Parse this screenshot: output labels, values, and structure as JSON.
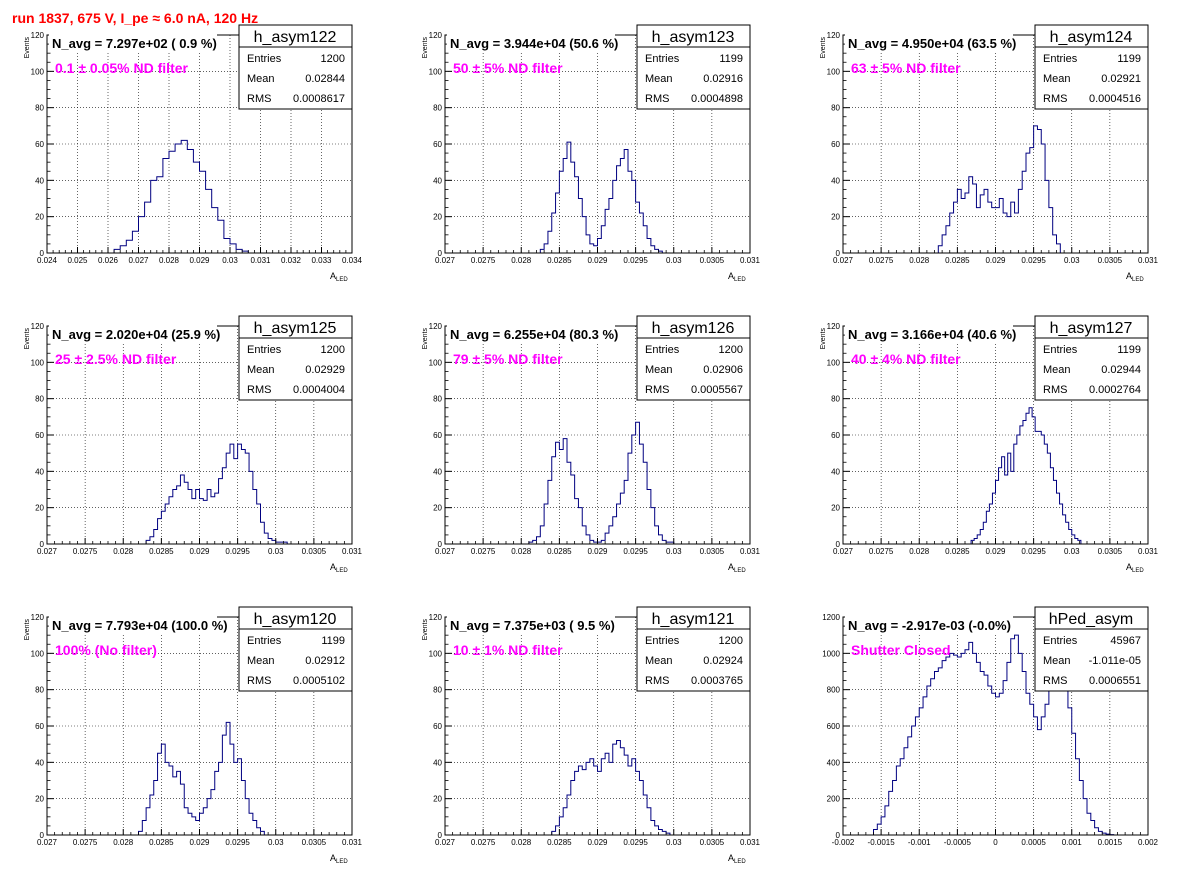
{
  "header": "run 1837,   675 V, I_pe ≈ 6.0 nA, 120 Hz",
  "colors": {
    "header": "#ff0000",
    "histogram": "#000080",
    "annotation": "#ff00ff",
    "grid": "#000000"
  },
  "stats_labels": {
    "entries": "Entries",
    "mean": "Mean",
    "rms": "RMS"
  },
  "chart_data": [
    {
      "type": "histogram",
      "name": "h_asym122",
      "stats": {
        "entries": "1200",
        "mean": "0.02844",
        "rms": "0.0008617"
      },
      "navg": "N_avg = 7.297e+02 ( 0.9 %)",
      "filter": "0.1 ± 0.05% ND filter",
      "ylabel": "Events",
      "xlabel": "A",
      "xlabel_sub": "LED",
      "xlim": [
        0.024,
        0.034
      ],
      "ylim": [
        0,
        120
      ],
      "grid": true,
      "xticks": [
        0.024,
        0.025,
        0.026,
        0.027,
        0.028,
        0.029,
        0.03,
        0.031,
        0.032,
        0.033,
        0.034
      ],
      "xtick_labels": [
        "0.024",
        "0.025",
        "0.026",
        "0.027",
        "0.028",
        "0.029",
        "0.03",
        "0.031",
        "0.032",
        "0.033",
        "0.034"
      ],
      "yticks": [
        0,
        20,
        40,
        60,
        80,
        100,
        120
      ],
      "bin_width": 0.0002,
      "bin_lo": [
        0.0262,
        0.0264,
        0.0266,
        0.0268,
        0.027,
        0.0272,
        0.0274,
        0.0276,
        0.0278,
        0.028,
        0.0282,
        0.0284,
        0.0286,
        0.0288,
        0.029,
        0.0292,
        0.0294,
        0.0296,
        0.0298,
        0.03,
        0.0302,
        0.0304
      ],
      "counts": [
        2,
        4,
        7,
        12,
        20,
        28,
        40,
        42,
        52,
        56,
        60,
        62,
        57,
        50,
        45,
        35,
        25,
        18,
        8,
        5,
        2,
        1
      ]
    },
    {
      "type": "histogram",
      "name": "h_asym123",
      "stats": {
        "entries": "1199",
        "mean": "0.02916",
        "rms": "0.0004898"
      },
      "navg": "N_avg = 3.944e+04 (50.6 %)",
      "filter": "50 ± 5% ND filter",
      "ylabel": "Events",
      "xlabel": "A",
      "xlabel_sub": "LED",
      "xlim": [
        0.027,
        0.031
      ],
      "ylim": [
        0,
        120
      ],
      "grid": true,
      "xticks": [
        0.027,
        0.0275,
        0.028,
        0.0285,
        0.029,
        0.0295,
        0.03,
        0.0305,
        0.031
      ],
      "xtick_labels": [
        "0.027",
        "0.0275",
        "0.028",
        "0.0285",
        "0.029",
        "0.0295",
        "0.03",
        "0.0305",
        "0.031"
      ],
      "yticks": [
        0,
        20,
        40,
        60,
        80,
        100,
        120
      ],
      "bin_width": 5e-05,
      "bin_lo": [
        0.02825,
        0.0283,
        0.02835,
        0.0284,
        0.02845,
        0.0285,
        0.02855,
        0.0286,
        0.02865,
        0.0287,
        0.02875,
        0.0288,
        0.02885,
        0.0289,
        0.02895,
        0.029,
        0.02905,
        0.0291,
        0.02915,
        0.0292,
        0.02925,
        0.0293,
        0.02935,
        0.0294,
        0.02945,
        0.0295,
        0.02955,
        0.0296,
        0.02965,
        0.0297,
        0.02975,
        0.0298,
        0.02985,
        0.0299,
        0.02995,
        0.03,
        0.03005
      ],
      "counts": [
        2,
        5,
        12,
        22,
        33,
        45,
        52,
        61,
        50,
        42,
        30,
        20,
        10,
        5,
        4,
        8,
        15,
        24,
        30,
        40,
        48,
        52,
        57,
        45,
        40,
        28,
        22,
        15,
        8,
        4,
        2,
        1,
        0,
        0,
        0,
        0,
        0
      ]
    },
    {
      "type": "histogram",
      "name": "h_asym124",
      "stats": {
        "entries": "1199",
        "mean": "0.02921",
        "rms": "0.0004516"
      },
      "navg": "N_avg = 4.950e+04 (63.5 %)",
      "filter": "63 ± 5% ND filter",
      "ylabel": "Events",
      "xlabel": "A",
      "xlabel_sub": "LED",
      "xlim": [
        0.027,
        0.031
      ],
      "ylim": [
        0,
        120
      ],
      "grid": true,
      "xticks": [
        0.027,
        0.0275,
        0.028,
        0.0285,
        0.029,
        0.0295,
        0.03,
        0.0305,
        0.031
      ],
      "xtick_labels": [
        "0.027",
        "0.0275",
        "0.028",
        "0.0285",
        "0.029",
        "0.0295",
        "0.03",
        "0.0305",
        "0.031"
      ],
      "yticks": [
        0,
        20,
        40,
        60,
        80,
        100,
        120
      ],
      "bin_width": 5e-05,
      "bin_lo": [
        0.02825,
        0.0283,
        0.02835,
        0.0284,
        0.02845,
        0.0285,
        0.02855,
        0.0286,
        0.02865,
        0.0287,
        0.02875,
        0.0288,
        0.02885,
        0.0289,
        0.02895,
        0.029,
        0.02905,
        0.0291,
        0.02915,
        0.0292,
        0.02925,
        0.0293,
        0.02935,
        0.0294,
        0.02945,
        0.0295,
        0.02955,
        0.0296,
        0.02965,
        0.0297,
        0.02975,
        0.0298
      ],
      "counts": [
        4,
        10,
        15,
        22,
        28,
        35,
        30,
        33,
        42,
        38,
        25,
        32,
        35,
        28,
        25,
        25,
        30,
        22,
        20,
        28,
        22,
        35,
        45,
        55,
        58,
        70,
        68,
        60,
        40,
        25,
        10,
        5
      ]
    },
    {
      "type": "histogram",
      "name": "h_asym125",
      "stats": {
        "entries": "1200",
        "mean": "0.02929",
        "rms": "0.0004004"
      },
      "navg": "N_avg = 2.020e+04 (25.9 %)",
      "filter": "25 ± 2.5% ND filter",
      "ylabel": "Events",
      "xlabel": "A",
      "xlabel_sub": "LED",
      "xlim": [
        0.027,
        0.031
      ],
      "ylim": [
        0,
        120
      ],
      "grid": true,
      "xticks": [
        0.027,
        0.0275,
        0.028,
        0.0285,
        0.029,
        0.0295,
        0.03,
        0.0305,
        0.031
      ],
      "xtick_labels": [
        "0.027",
        "0.0275",
        "0.028",
        "0.0285",
        "0.029",
        "0.0295",
        "0.03",
        "0.0305",
        "0.031"
      ],
      "yticks": [
        0,
        20,
        40,
        60,
        80,
        100,
        120
      ],
      "bin_width": 5e-05,
      "bin_lo": [
        0.0283,
        0.02835,
        0.0284,
        0.02845,
        0.0285,
        0.02855,
        0.0286,
        0.02865,
        0.0287,
        0.02875,
        0.0288,
        0.02885,
        0.0289,
        0.02895,
        0.029,
        0.02905,
        0.0291,
        0.02915,
        0.0292,
        0.02925,
        0.0293,
        0.02935,
        0.0294,
        0.02945,
        0.0295,
        0.02955,
        0.0296,
        0.02965,
        0.0297,
        0.02975,
        0.0298,
        0.02985,
        0.0299,
        0.02995,
        0.03,
        0.03005,
        0.0301
      ],
      "counts": [
        2,
        4,
        8,
        14,
        18,
        22,
        26,
        30,
        32,
        38,
        34,
        30,
        25,
        30,
        25,
        24,
        30,
        26,
        28,
        36,
        42,
        50,
        55,
        47,
        55,
        52,
        50,
        40,
        30,
        22,
        12,
        6,
        3,
        2,
        1,
        1,
        1
      ]
    },
    {
      "type": "histogram",
      "name": "h_asym126",
      "stats": {
        "entries": "1200",
        "mean": "0.02906",
        "rms": "0.0005567"
      },
      "navg": "N_avg = 6.255e+04 (80.3 %)",
      "filter": "79 ± 5% ND filter",
      "ylabel": "Events",
      "xlabel": "A",
      "xlabel_sub": "LED",
      "xlim": [
        0.027,
        0.031
      ],
      "ylim": [
        0,
        120
      ],
      "grid": true,
      "xticks": [
        0.027,
        0.0275,
        0.028,
        0.0285,
        0.029,
        0.0295,
        0.03,
        0.0305,
        0.031
      ],
      "xtick_labels": [
        "0.027",
        "0.0275",
        "0.028",
        "0.0285",
        "0.029",
        "0.0295",
        "0.03",
        "0.0305",
        "0.031"
      ],
      "yticks": [
        0,
        20,
        40,
        60,
        80,
        100,
        120
      ],
      "bin_width": 5e-05,
      "bin_lo": [
        0.0281,
        0.02815,
        0.0282,
        0.02825,
        0.0283,
        0.02835,
        0.0284,
        0.02845,
        0.0285,
        0.02855,
        0.0286,
        0.02865,
        0.0287,
        0.02875,
        0.0288,
        0.02885,
        0.0289,
        0.02895,
        0.029,
        0.02905,
        0.0291,
        0.02915,
        0.0292,
        0.02925,
        0.0293,
        0.02935,
        0.0294,
        0.02945,
        0.0295,
        0.02955,
        0.0296,
        0.02965,
        0.0297,
        0.02975,
        0.0298,
        0.02985,
        0.0299,
        0.02995,
        0.03,
        0.03005
      ],
      "counts": [
        1,
        2,
        4,
        10,
        22,
        35,
        48,
        56,
        52,
        58,
        45,
        38,
        25,
        20,
        10,
        5,
        2,
        1,
        1,
        2,
        6,
        10,
        15,
        22,
        28,
        35,
        50,
        60,
        67,
        55,
        45,
        30,
        20,
        10,
        5,
        2,
        1,
        1,
        0,
        0
      ]
    },
    {
      "type": "histogram",
      "name": "h_asym127",
      "stats": {
        "entries": "1199",
        "mean": "0.02944",
        "rms": "0.0002764"
      },
      "navg": "N_avg = 3.166e+04 (40.6 %)",
      "filter": "40 ± 4% ND filter",
      "ylabel": "Events",
      "xlabel": "A",
      "xlabel_sub": "LED",
      "xlim": [
        0.027,
        0.031
      ],
      "ylim": [
        0,
        120
      ],
      "grid": true,
      "xticks": [
        0.027,
        0.0275,
        0.028,
        0.0285,
        0.029,
        0.0295,
        0.03,
        0.0305,
        0.031
      ],
      "xtick_labels": [
        "0.027",
        "0.0275",
        "0.028",
        "0.0285",
        "0.029",
        "0.0295",
        "0.03",
        "0.0305",
        "0.031"
      ],
      "yticks": [
        0,
        20,
        40,
        60,
        80,
        100,
        120
      ],
      "bin_width": 4e-05,
      "bin_lo": [
        0.02868,
        0.02872,
        0.02876,
        0.0288,
        0.02884,
        0.02888,
        0.02892,
        0.02896,
        0.029,
        0.02904,
        0.02908,
        0.02912,
        0.02916,
        0.0292,
        0.02924,
        0.02928,
        0.02932,
        0.02936,
        0.0294,
        0.02944,
        0.02948,
        0.02952,
        0.02956,
        0.0296,
        0.02964,
        0.02968,
        0.02972,
        0.02976,
        0.0298,
        0.02984,
        0.02988,
        0.02992,
        0.02996,
        0.03,
        0.03004,
        0.03008
      ],
      "counts": [
        2,
        3,
        5,
        8,
        12,
        18,
        22,
        28,
        35,
        42,
        48,
        38,
        50,
        40,
        55,
        60,
        65,
        68,
        72,
        75,
        70,
        62,
        62,
        60,
        55,
        50,
        42,
        35,
        28,
        22,
        16,
        12,
        8,
        5,
        3,
        2
      ]
    },
    {
      "type": "histogram",
      "name": "h_asym120",
      "stats": {
        "entries": "1199",
        "mean": "0.02912",
        "rms": "0.0005102"
      },
      "navg": "N_avg = 7.793e+04 (100.0 %)",
      "filter": "100% (No filter)",
      "ylabel": "Events",
      "xlabel": "A",
      "xlabel_sub": "LED",
      "xlim": [
        0.027,
        0.031
      ],
      "ylim": [
        0,
        120
      ],
      "grid": true,
      "xticks": [
        0.027,
        0.0275,
        0.028,
        0.0285,
        0.029,
        0.0295,
        0.03,
        0.0305,
        0.031
      ],
      "xtick_labels": [
        "0.027",
        "0.0275",
        "0.028",
        "0.0285",
        "0.029",
        "0.0295",
        "0.03",
        "0.0305",
        "0.031"
      ],
      "yticks": [
        0,
        20,
        40,
        60,
        80,
        100,
        120
      ],
      "bin_width": 5e-05,
      "bin_lo": [
        0.0282,
        0.02825,
        0.0283,
        0.02835,
        0.0284,
        0.02845,
        0.0285,
        0.02855,
        0.0286,
        0.02865,
        0.0287,
        0.02875,
        0.0288,
        0.02885,
        0.0289,
        0.02895,
        0.029,
        0.02905,
        0.0291,
        0.02915,
        0.0292,
        0.02925,
        0.0293,
        0.02935,
        0.0294,
        0.02945,
        0.0295,
        0.02955,
        0.0296,
        0.02965,
        0.0297,
        0.02975,
        0.0298
      ],
      "counts": [
        2,
        8,
        15,
        22,
        30,
        45,
        50,
        40,
        38,
        32,
        35,
        28,
        15,
        12,
        10,
        8,
        12,
        15,
        20,
        25,
        35,
        40,
        55,
        62,
        50,
        40,
        42,
        30,
        20,
        12,
        8,
        4,
        2
      ]
    },
    {
      "type": "histogram",
      "name": "h_asym121",
      "stats": {
        "entries": "1200",
        "mean": "0.02924",
        "rms": "0.0003765"
      },
      "navg": "N_avg = 7.375e+03 ( 9.5 %)",
      "filter": "10 ± 1% ND filter",
      "ylabel": "Events",
      "xlabel": "A",
      "xlabel_sub": "LED",
      "xlim": [
        0.027,
        0.031
      ],
      "ylim": [
        0,
        120
      ],
      "grid": true,
      "xticks": [
        0.027,
        0.0275,
        0.028,
        0.0285,
        0.029,
        0.0295,
        0.03,
        0.0305,
        0.031
      ],
      "xtick_labels": [
        "0.027",
        "0.0275",
        "0.028",
        "0.0285",
        "0.029",
        "0.0295",
        "0.03",
        "0.0305",
        "0.031"
      ],
      "yticks": [
        0,
        20,
        40,
        60,
        80,
        100,
        120
      ],
      "bin_width": 5e-05,
      "bin_lo": [
        0.0284,
        0.02845,
        0.0285,
        0.02855,
        0.0286,
        0.02865,
        0.0287,
        0.02875,
        0.0288,
        0.02885,
        0.0289,
        0.02895,
        0.029,
        0.02905,
        0.0291,
        0.02915,
        0.0292,
        0.02925,
        0.0293,
        0.02935,
        0.0294,
        0.02945,
        0.0295,
        0.02955,
        0.0296,
        0.02965,
        0.0297,
        0.02975,
        0.0298,
        0.02985,
        0.0299
      ],
      "counts": [
        2,
        5,
        10,
        15,
        22,
        30,
        35,
        38,
        36,
        40,
        42,
        38,
        35,
        42,
        45,
        40,
        50,
        52,
        48,
        44,
        38,
        42,
        35,
        30,
        22,
        15,
        8,
        5,
        3,
        2,
        1
      ]
    },
    {
      "type": "histogram",
      "name": "hPed_asym",
      "stats": {
        "entries": "45967",
        "mean": "-1.011e-05",
        "rms": "0.0006551"
      },
      "navg": "N_avg = -2.917e-03 (-0.0%)",
      "filter": "Shutter Closed",
      "ylabel": "",
      "xlabel": "",
      "xlabel_sub": "",
      "xlim": [
        -0.002,
        0.002
      ],
      "ylim": [
        0,
        1200
      ],
      "grid": true,
      "xticks": [
        -0.002,
        -0.0015,
        -0.001,
        -0.0005,
        0,
        0.0005,
        0.001,
        0.0015,
        0.002
      ],
      "xtick_labels": [
        "-0.002",
        "-0.0015",
        "-0.001",
        "-0.0005",
        "0",
        "0.0005",
        "0.001",
        "0.0015",
        "0.002"
      ],
      "yticks": [
        0,
        200,
        400,
        600,
        800,
        1000,
        1200
      ],
      "bin_width": 5e-05,
      "bin_lo": [
        -0.0016,
        -0.00155,
        -0.0015,
        -0.00145,
        -0.0014,
        -0.00135,
        -0.0013,
        -0.00125,
        -0.0012,
        -0.00115,
        -0.0011,
        -0.00105,
        -0.001,
        -0.00095,
        -0.0009,
        -0.00085,
        -0.0008,
        -0.00075,
        -0.0007,
        -0.00065,
        -0.0006,
        -0.00055,
        -0.0005,
        -0.00045,
        -0.0004,
        -0.00035,
        -0.0003,
        -0.00025,
        -0.0002,
        -0.00015,
        -0.0001,
        -5e-05,
        0,
        5e-05,
        0.0001,
        0.00015,
        0.0002,
        0.00025,
        0.0003,
        0.00035,
        0.0004,
        0.00045,
        0.0005,
        0.00055,
        0.0006,
        0.00065,
        0.0007,
        0.00075,
        0.0008,
        0.00085,
        0.0009,
        0.00095,
        0.001,
        0.00105,
        0.0011,
        0.00115,
        0.0012,
        0.00125,
        0.0013,
        0.00135,
        0.0014,
        0.00145,
        0.0015
      ],
      "counts": [
        30,
        60,
        100,
        160,
        240,
        300,
        380,
        420,
        480,
        540,
        600,
        650,
        700,
        760,
        820,
        860,
        900,
        920,
        960,
        980,
        1000,
        990,
        980,
        1000,
        1020,
        1060,
        1000,
        950,
        900,
        880,
        820,
        780,
        760,
        780,
        850,
        950,
        1080,
        1100,
        1000,
        900,
        780,
        720,
        650,
        580,
        650,
        720,
        800,
        880,
        950,
        920,
        860,
        700,
        560,
        420,
        300,
        200,
        120,
        80,
        40,
        20,
        10,
        5,
        2
      ]
    }
  ]
}
